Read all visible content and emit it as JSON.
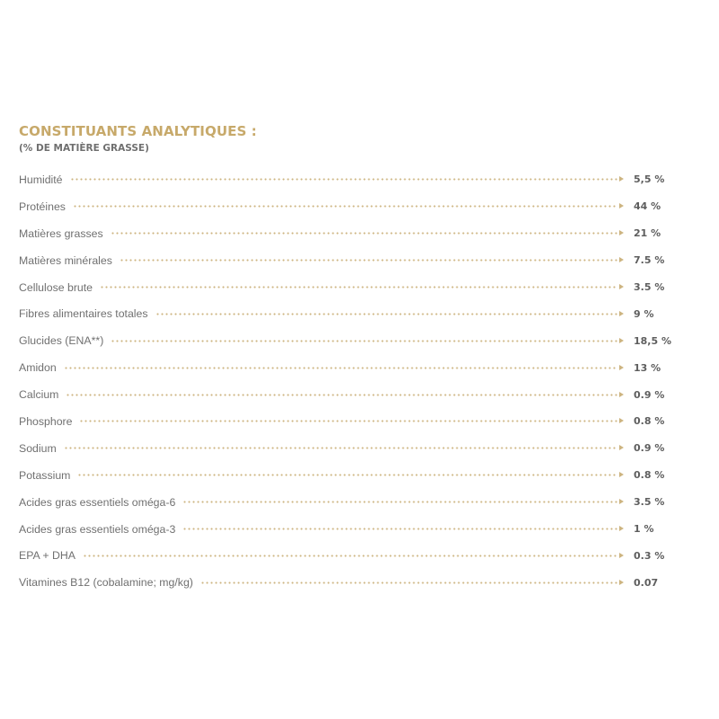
{
  "colors": {
    "heading": "#c7a96a",
    "leader": "#cdb480"
  },
  "section": {
    "title": "CONSTITUANTS ANALYTIQUES :",
    "subtitle": "(% DE MATIÈRE GRASSE)"
  },
  "constituents": [
    {
      "label": "Humidité",
      "value": "5,5 %"
    },
    {
      "label": "Protéines",
      "value": "44 %"
    },
    {
      "label": "Matières grasses",
      "value": "21 %"
    },
    {
      "label": "Matières minérales",
      "value": "7.5 %"
    },
    {
      "label": "Cellulose brute",
      "value": "3.5 %"
    },
    {
      "label": "Fibres alimentaires totales",
      "value": "9 %"
    },
    {
      "label": "Glucides (ENA**)",
      "value": "18,5 %"
    },
    {
      "label": "Amidon",
      "value": "13 %"
    },
    {
      "label": "Calcium",
      "value": "0.9 %"
    },
    {
      "label": "Phosphore",
      "value": "0.8 %"
    },
    {
      "label": "Sodium",
      "value": "0.9 %"
    },
    {
      "label": "Potassium",
      "value": "0.8 %"
    },
    {
      "label": "Acides gras essentiels oméga-6",
      "value": "3.5 %"
    },
    {
      "label": "Acides gras essentiels oméga-3",
      "value": "1 %"
    },
    {
      "label": "EPA + DHA",
      "value": "0.3 %"
    },
    {
      "label": "Vitamines B12 (cobalamine; mg/kg)",
      "value": "0.07"
    }
  ]
}
